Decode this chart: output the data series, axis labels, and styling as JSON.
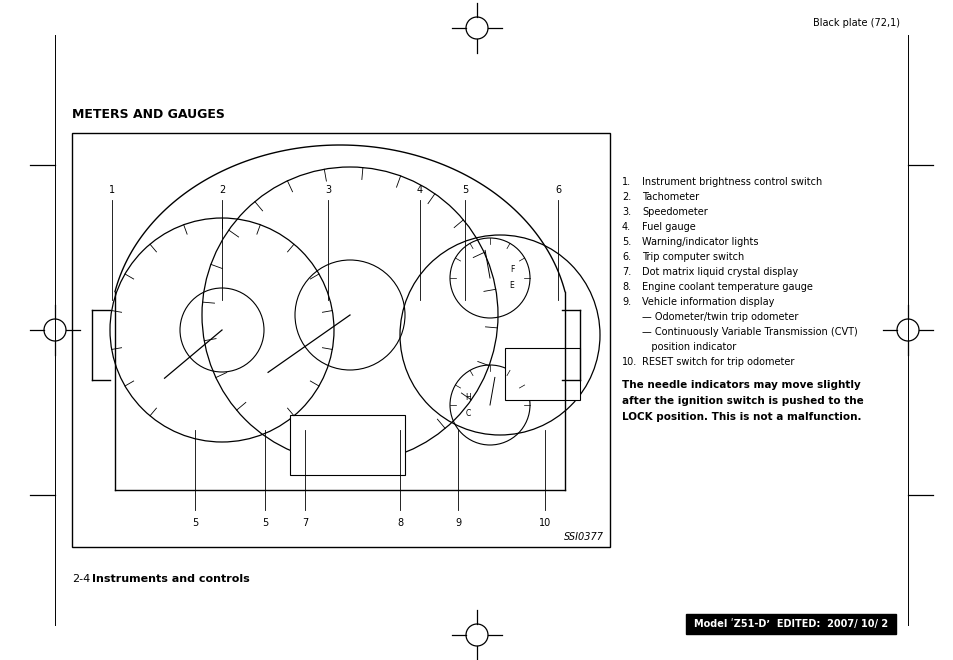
{
  "page_title": "Black plate (72,1)",
  "section_title": "METERS AND GAUGES",
  "image_label": "SSI0377",
  "footer_left_num": "2-4",
  "footer_left_text": "Instruments and controls",
  "footer_right": "Model ʹZ51-Dʼ  EDITED:  2007/ 10/ 2",
  "numbered_items": [
    {
      "num": "1.",
      "text": "Instrument brightness control switch"
    },
    {
      "num": "2.",
      "text": "Tachometer"
    },
    {
      "num": "3.",
      "text": "Speedometer"
    },
    {
      "num": "4.",
      "text": "Fuel gauge"
    },
    {
      "num": "5.",
      "text": "Warning/indicator lights"
    },
    {
      "num": "6.",
      "text": "Trip computer switch"
    },
    {
      "num": "7.",
      "text": "Dot matrix liquid crystal display"
    },
    {
      "num": "8.",
      "text": "Engine coolant temperature gauge"
    },
    {
      "num": "9.",
      "text": "Vehicle information display"
    },
    {
      "num": "",
      "text": "— Odometer/twin trip odometer"
    },
    {
      "num": "",
      "text": "— Continuously Variable Transmission (CVT)"
    },
    {
      "num": "",
      "text": "   position indicator"
    },
    {
      "num": "10.",
      "text": "RESET switch for trip odometer"
    }
  ],
  "bold_lines": [
    "The needle indicators may move slightly",
    "after the ignition switch is pushed to the",
    "LOCK position. This is not a malfunction."
  ],
  "bg_color": "#ffffff"
}
